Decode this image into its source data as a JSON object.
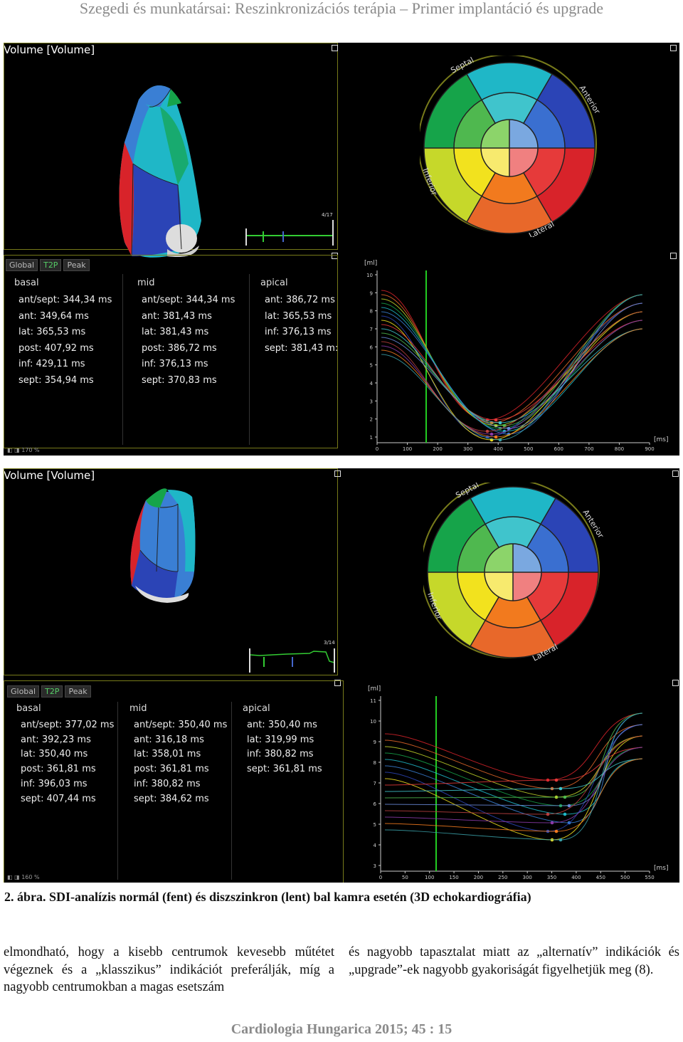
{
  "header": "Szegedi és munkatársai: Reszinkronizációs terápia – Primer implantáció és upgrade",
  "colors": {
    "red": "#d8232a",
    "orange": "#e8682a",
    "yellow": "#ffec1e",
    "lime": "#c6d82a",
    "green": "#16a44a",
    "teal": "#1fb7c7",
    "blue": "#2b44b6",
    "sky": "#3a7fd4",
    "olive": "#777a1a"
  },
  "panel_top": {
    "title": "Volume [Volume]",
    "frame": "4/17",
    "tabs": [
      "Global",
      "T2P",
      "Peak"
    ],
    "zoom": "170 %",
    "columns": [
      {
        "head": "basal",
        "rows": [
          "ant/sept: 344,34 ms",
          "ant: 349,64 ms",
          "lat: 365,53 ms",
          "post: 407,92 ms",
          "inf: 429,11 ms",
          "sept: 354,94 ms"
        ]
      },
      {
        "head": "mid",
        "rows": [
          "ant/sept: 344,34 ms",
          "ant: 381,43 ms",
          "lat: 381,43 ms",
          "post: 386,72 ms",
          "inf: 376,13 ms",
          "sept: 370,83 ms"
        ]
      },
      {
        "head": "apical",
        "rows": [
          "ant: 386,72 ms",
          "lat: 365,53 ms",
          "inf: 376,13 ms",
          "sept: 381,43 m:"
        ]
      }
    ],
    "bullseye_labels": [
      "Septal",
      "Anterior",
      "Lateral",
      "Inferior"
    ],
    "chart": {
      "ylabel": "[ml]",
      "xlabel": "[ms]",
      "yticks": [
        "1",
        "2",
        "3",
        "4",
        "5",
        "6",
        "7",
        "8",
        "9",
        "10"
      ],
      "xticks": [
        "0",
        "100",
        "200",
        "300",
        "400",
        "500",
        "600",
        "700",
        "800",
        "900"
      ]
    }
  },
  "panel_bottom": {
    "title": "Volume [Volume]",
    "frame": "3/14",
    "tabs": [
      "Global",
      "T2P",
      "Peak"
    ],
    "zoom": "160 %",
    "columns": [
      {
        "head": "basal",
        "rows": [
          "ant/sept: 377,02 ms",
          "ant: 392,23 ms",
          "lat: 350,40 ms",
          "post: 361,81 ms",
          "inf: 396,03 ms",
          "sept: 407,44 ms"
        ]
      },
      {
        "head": "mid",
        "rows": [
          "ant/sept: 350,40 ms",
          "ant: 316,18 ms",
          "lat: 358,01 ms",
          "post: 361,81 ms",
          "inf: 380,82 ms",
          "sept: 384,62 ms"
        ]
      },
      {
        "head": "apical",
        "rows": [
          "ant: 350,40 ms",
          "lat: 319,99 ms",
          "inf: 380,82 ms",
          "sept: 361,81 ms"
        ]
      }
    ],
    "bullseye_labels": [
      "Septal",
      "Anterior",
      "Lateral",
      "Inferior"
    ],
    "chart": {
      "ylabel": "[ml]",
      "xlabel": "[ms]",
      "yticks": [
        "3",
        "4",
        "5",
        "6",
        "7",
        "8",
        "9",
        "10",
        "11"
      ],
      "xticks": [
        "0",
        "50",
        "100",
        "150",
        "200",
        "250",
        "300",
        "350",
        "400",
        "450",
        "500",
        "550"
      ]
    }
  },
  "caption": "2. ábra. SDI-analízis normál (fent) és diszszinkron (lent) bal kamra esetén (3D echokardiográfia)",
  "body_left": "elmondható, hogy a kisebb centrumok kevesebb műtétet végeznek és a „klasszikus” indikációt preferálják, míg a nagyobb centrumokban a magas esetszám",
  "body_right": "és nagyobb tapasztalat miatt az „alternatív” indikációk és „upgrade”-ek nagyobb gyakoriságát figyelhetjük meg (8).",
  "footer": "Cardiologia Hungarica 2015; 45 : 15"
}
